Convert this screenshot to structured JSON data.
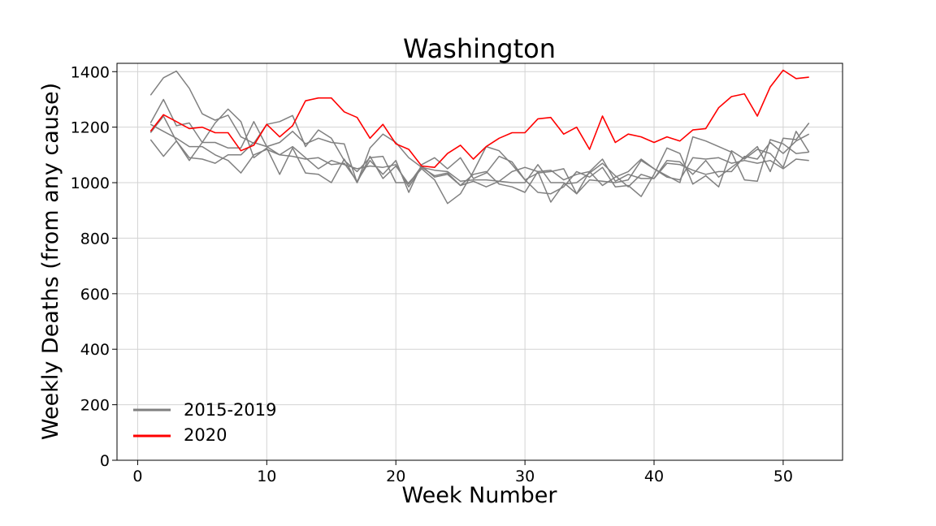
{
  "chart_data": {
    "type": "line",
    "title": "Washington",
    "xlabel": "Week Number",
    "ylabel": "Weekly Deaths (from any cause)",
    "xlim": [
      -1.6,
      54.6
    ],
    "ylim": [
      0,
      1430
    ],
    "xticks": [
      0,
      10,
      20,
      30,
      40,
      50
    ],
    "yticks": [
      0,
      200,
      400,
      600,
      800,
      1000,
      1200,
      1400
    ],
    "grid": true,
    "legend_position": "lower-left",
    "colors": {
      "baseline": "#808080",
      "current": "#ff0000",
      "grid": "#d3d3d3"
    },
    "legend": [
      {
        "label": "2015-2019",
        "color": "#808080"
      },
      {
        "label": "2020",
        "color": "#ff0000"
      }
    ],
    "x": [
      1,
      2,
      3,
      4,
      5,
      6,
      7,
      8,
      9,
      10,
      11,
      12,
      13,
      14,
      15,
      16,
      17,
      18,
      19,
      20,
      21,
      22,
      23,
      24,
      25,
      26,
      27,
      28,
      29,
      30,
      31,
      32,
      33,
      34,
      35,
      36,
      37,
      38,
      39,
      40,
      41,
      42,
      43,
      44,
      45,
      46,
      47,
      48,
      49,
      50,
      51,
      52
    ],
    "series": [
      {
        "group": "baseline",
        "values": [
          1315,
          1378,
          1402,
          1340,
          1248,
          1225,
          1243,
          1165,
          1142,
          1210,
          1220,
          1242,
          1130,
          1190,
          1160,
          1080,
          1040,
          1090,
          1095,
          1000,
          1000,
          1050,
          1010,
          925,
          960,
          1040,
          1130,
          1115,
          1065,
          1010,
          1035,
          1040,
          1050,
          960,
          1010,
          1005,
          1000,
          1010,
          1080,
          1050,
          1020,
          1010,
          1090,
          1085,
          1090,
          1070,
          1080,
          1070,
          1080,
          1050,
          1085,
          1080
        ]
      },
      {
        "group": "baseline",
        "values": [
          1215,
          1300,
          1205,
          1215,
          1145,
          1145,
          1125,
          1125,
          1220,
          1130,
          1100,
          1130,
          1090,
          1050,
          1080,
          1065,
          1050,
          1060,
          1055,
          1065,
          985,
          1055,
          1025,
          1035,
          990,
          1005,
          985,
          1005,
          1040,
          1055,
          1040,
          930,
          995,
          1000,
          1035,
          1070,
          1025,
          985,
          1030,
          1015,
          1080,
          1075,
          1030,
          1080,
          1020,
          1055,
          1090,
          1130,
          1040,
          1160,
          1155,
          1215
        ]
      },
      {
        "group": "baseline",
        "values": [
          1155,
          1095,
          1150,
          1090,
          1085,
          1070,
          1100,
          1100,
          1145,
          1130,
          1145,
          1185,
          1140,
          1160,
          1145,
          1140,
          1000,
          1095,
          1015,
          1060,
          995,
          1060,
          1020,
          1030,
          990,
          1030,
          1040,
          995,
          985,
          965,
          1040,
          1045,
          1010,
          1030,
          1040,
          1085,
          1005,
          1030,
          1015,
          1015,
          1070,
          1065,
          1045,
          1030,
          1040,
          1040,
          1095,
          1085,
          1145,
          1105,
          1150,
          1175
        ]
      },
      {
        "group": "baseline",
        "values": [
          1180,
          1240,
          1150,
          1080,
          1145,
          1215,
          1265,
          1220,
          1090,
          1125,
          1030,
          1125,
          1035,
          1030,
          1000,
          1085,
          1000,
          1125,
          1175,
          1145,
          1090,
          1055,
          1045,
          1040,
          1005,
          1010,
          1010,
          1005,
          1000,
          1000,
          1065,
          1000,
          1000,
          960,
          1040,
          990,
          1020,
          1040,
          1085,
          1050,
          1025,
          1000,
          1165,
          1150,
          1130,
          1110,
          1010,
          1005,
          1155,
          1140,
          1105,
          1110
        ]
      },
      {
        "group": "baseline",
        "values": [
          1210,
          1185,
          1160,
          1130,
          1130,
          1100,
          1080,
          1035,
          1100,
          1120,
          1100,
          1095,
          1085,
          1090,
          1065,
          1070,
          1005,
          1080,
          1030,
          1080,
          965,
          1065,
          1090,
          1050,
          1090,
          1015,
          1035,
          1095,
          1075,
          1010,
          965,
          960,
          985,
          1040,
          1020,
          1055,
          985,
          990,
          950,
          1030,
          1125,
          1105,
          995,
          1025,
          985,
          1115,
          1085,
          1120,
          1105,
          1055,
          1185,
          1110
        ]
      },
      {
        "group": "current",
        "name": "2020",
        "values": [
          1185,
          1245,
          1220,
          1195,
          1200,
          1180,
          1180,
          1115,
          1135,
          1210,
          1165,
          1205,
          1295,
          1305,
          1305,
          1255,
          1235,
          1160,
          1210,
          1140,
          1120,
          1060,
          1055,
          1105,
          1135,
          1085,
          1130,
          1160,
          1180,
          1180,
          1230,
          1235,
          1175,
          1200,
          1120,
          1240,
          1145,
          1175,
          1165,
          1145,
          1165,
          1150,
          1190,
          1195,
          1270,
          1310,
          1320,
          1240,
          1345,
          1405,
          1375,
          1380
        ]
      }
    ]
  }
}
